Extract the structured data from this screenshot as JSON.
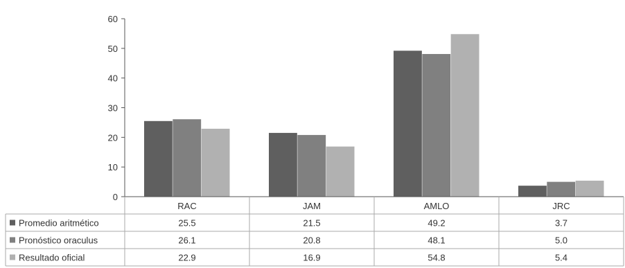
{
  "chart_data": {
    "type": "bar",
    "title": "",
    "xlabel": "",
    "ylabel": "",
    "ylim": [
      0,
      60
    ],
    "yticks": [
      0,
      10,
      20,
      30,
      40,
      50,
      60
    ],
    "grid": false,
    "legend_placement": "data-table-left",
    "categories": [
      "RAC",
      "JAM",
      "AMLO",
      "JRC"
    ],
    "series": [
      {
        "name": "Promedio aritmético",
        "color": "#5f5f5f",
        "values": [
          25.5,
          21.5,
          49.2,
          3.7
        ],
        "labels": [
          "25.5",
          "21.5",
          "49.2",
          "3.7"
        ]
      },
      {
        "name": "Pronóstico oraculus",
        "color": "#808080",
        "values": [
          26.1,
          20.8,
          48.1,
          5.0
        ],
        "labels": [
          "26.1",
          "20.8",
          "48.1",
          "5.0"
        ]
      },
      {
        "name": "Resultado oficial",
        "color": "#b1b1b1",
        "values": [
          22.9,
          16.9,
          54.8,
          5.4
        ],
        "labels": [
          "22.9",
          "16.9",
          "54.8",
          "5.4"
        ]
      }
    ]
  }
}
